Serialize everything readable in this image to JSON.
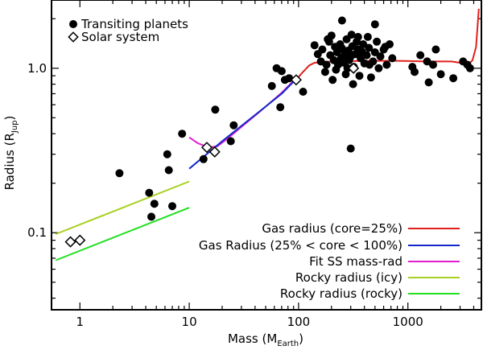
{
  "chart_data": {
    "type": "scatter",
    "xscale": "log",
    "yscale": "log",
    "xlim": [
      0.55,
      4700
    ],
    "ylim": [
      0.034,
      2.6
    ],
    "xticks": [
      {
        "value": 1,
        "label": "1"
      },
      {
        "value": 10,
        "label": "10"
      },
      {
        "value": 100,
        "label": "100"
      },
      {
        "value": 1000,
        "label": "1000"
      }
    ],
    "yticks": [
      {
        "value": 0.1,
        "label": "0.1"
      },
      {
        "value": 1.0,
        "label": "1.0"
      }
    ],
    "xlabel": {
      "main": "Mass (M",
      "sub": "Earth",
      "close": ")"
    },
    "ylabel": {
      "main": "Radius (R",
      "sub": "Jup",
      "close": ")"
    },
    "legend_top": [
      {
        "label": "Transiting planets",
        "marker": "filled-circle"
      },
      {
        "label": "Solar system",
        "marker": "open-diamond"
      }
    ],
    "transiting_planets": [
      [
        2.3,
        0.23
      ],
      [
        4.3,
        0.175
      ],
      [
        4.5,
        0.125
      ],
      [
        4.8,
        0.15
      ],
      [
        6.3,
        0.3
      ],
      [
        6.5,
        0.24
      ],
      [
        7.0,
        0.145
      ],
      [
        8.6,
        0.4
      ],
      [
        13.5,
        0.28
      ],
      [
        17.3,
        0.56
      ],
      [
        24.0,
        0.36
      ],
      [
        25.5,
        0.45
      ],
      [
        57.0,
        0.78
      ],
      [
        63.0,
        1.0
      ],
      [
        68.0,
        0.58
      ],
      [
        70.0,
        0.96
      ],
      [
        75.0,
        0.85
      ],
      [
        82.0,
        0.87
      ],
      [
        95.0,
        0.85
      ],
      [
        110.0,
        0.72
      ],
      [
        300.0,
        0.325
      ],
      [
        140,
        1.38
      ],
      [
        150,
        1.22
      ],
      [
        160,
        1.1
      ],
      [
        165,
        1.3
      ],
      [
        175,
        0.95
      ],
      [
        180,
        1.05
      ],
      [
        190,
        1.45
      ],
      [
        195,
        1.2
      ],
      [
        200,
        1.58
      ],
      [
        210,
        1.12
      ],
      [
        215,
        1.35
      ],
      [
        220,
        0.98
      ],
      [
        225,
        1.25
      ],
      [
        230,
        1.05
      ],
      [
        240,
        1.4
      ],
      [
        245,
        1.15
      ],
      [
        250,
        1.32
      ],
      [
        260,
        1.08
      ],
      [
        265,
        1.22
      ],
      [
        270,
        0.92
      ],
      [
        275,
        1.5
      ],
      [
        285,
        1.28
      ],
      [
        290,
        1.12
      ],
      [
        300,
        1.18
      ],
      [
        310,
        1.36
      ],
      [
        320,
        1.02
      ],
      [
        330,
        1.22
      ],
      [
        340,
        1.45
      ],
      [
        350,
        1.3
      ],
      [
        360,
        0.9
      ],
      [
        370,
        1.15
      ],
      [
        380,
        1.26
      ],
      [
        390,
        1.4
      ],
      [
        400,
        1.07
      ],
      [
        420,
        1.2
      ],
      [
        440,
        1.33
      ],
      [
        460,
        0.88
      ],
      [
        480,
        1.1
      ],
      [
        500,
        1.25
      ],
      [
        520,
        1.45
      ],
      [
        540,
        1.0
      ],
      [
        560,
        1.18
      ],
      [
        600,
        1.3
      ],
      [
        640,
        1.05
      ],
      [
        680,
        1.4
      ],
      [
        720,
        1.15
      ],
      [
        250,
        1.95
      ],
      [
        500,
        1.85
      ],
      [
        185,
        1.5
      ],
      [
        255,
        1.12
      ],
      [
        305,
        1.6
      ],
      [
        430,
        1.55
      ],
      [
        620,
        1.35
      ],
      [
        205,
        0.85
      ],
      [
        315,
        0.8
      ],
      [
        445,
        1.05
      ],
      [
        280,
        1.0
      ],
      [
        350,
        1.55
      ],
      [
        1100,
        1.02
      ],
      [
        1150,
        0.95
      ],
      [
        1300,
        1.2
      ],
      [
        1500,
        1.1
      ],
      [
        1550,
        0.82
      ],
      [
        1700,
        1.05
      ],
      [
        1800,
        1.3
      ],
      [
        2000,
        0.92
      ],
      [
        2600,
        0.87
      ],
      [
        3200,
        1.1
      ],
      [
        3500,
        1.05
      ],
      [
        3700,
        1.0
      ]
    ],
    "solar_system": [
      [
        0.82,
        0.088
      ],
      [
        1.0,
        0.09
      ],
      [
        14.5,
        0.33
      ],
      [
        17.1,
        0.31
      ],
      [
        95.0,
        0.85
      ],
      [
        318.0,
        1.0
      ]
    ],
    "legend_bottom": [
      {
        "label": "Gas radius (core=25%)",
        "color": "#e0201c"
      },
      {
        "label": "Gas Radius (25% < core < 100%)",
        "color": "#1428c8"
      },
      {
        "label": "Fit SS mass-rad",
        "color": "#e020d0"
      },
      {
        "label": "Rocky radius (icy)",
        "color": "#a8d020"
      },
      {
        "label": "Rocky radius (rocky)",
        "color": "#20e020"
      }
    ],
    "curves": {
      "gas_core25": [
        [
          95,
          0.85
        ],
        [
          105,
          0.92
        ],
        [
          115,
          0.98
        ],
        [
          125,
          1.04
        ],
        [
          140,
          1.08
        ],
        [
          200,
          1.1
        ],
        [
          400,
          1.11
        ],
        [
          800,
          1.11
        ],
        [
          1500,
          1.1
        ],
        [
          2500,
          1.1
        ],
        [
          3000,
          1.08
        ],
        [
          3300,
          1.05
        ],
        [
          3600,
          1.06
        ],
        [
          3900,
          1.12
        ],
        [
          4200,
          1.35
        ],
        [
          4450,
          2.3
        ]
      ],
      "gas_core_range": [
        [
          10,
          0.245
        ],
        [
          20,
          0.36
        ],
        [
          40,
          0.52
        ],
        [
          70,
          0.7
        ],
        [
          95,
          0.86
        ]
      ],
      "fit_ss": [
        [
          10,
          0.38
        ],
        [
          12,
          0.35
        ],
        [
          15,
          0.33
        ],
        [
          18,
          0.335
        ],
        [
          22,
          0.37
        ],
        [
          30,
          0.44
        ],
        [
          45,
          0.55
        ],
        [
          70,
          0.71
        ],
        [
          95,
          0.87
        ]
      ],
      "rocky_icy": [
        [
          0.6,
          0.098
        ],
        [
          10,
          0.205
        ]
      ],
      "rocky_rocky": [
        [
          0.6,
          0.068
        ],
        [
          10,
          0.142
        ]
      ]
    }
  }
}
